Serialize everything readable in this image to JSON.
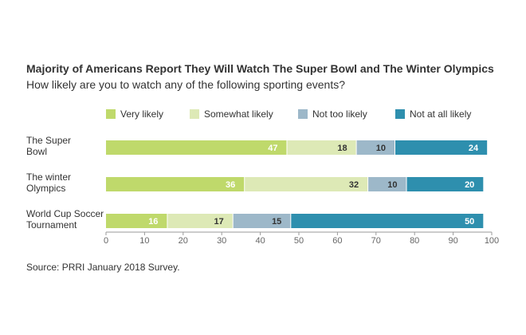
{
  "chart_data": {
    "type": "bar",
    "orientation": "horizontal",
    "stacked": true,
    "title": "Majority of Americans Report They Will Watch The Super Bowl and The Winter Olympics",
    "subtitle": "How likely are you to watch any of the following sporting events?",
    "categories": [
      [
        "The Super",
        "Bowl"
      ],
      [
        "The winter",
        "Olympics"
      ],
      [
        "World Cup Soccer",
        "Tournament"
      ]
    ],
    "series": [
      {
        "name": "Very likely",
        "color": "#bfd96b",
        "label_color": "#ffffff",
        "values": [
          47,
          36,
          16
        ]
      },
      {
        "name": "Somewhat likely",
        "color": "#dde9b6",
        "label_color": "#333333",
        "values": [
          18,
          32,
          17
        ]
      },
      {
        "name": "Not too likely",
        "color": "#9db8c9",
        "label_color": "#333333",
        "values": [
          10,
          10,
          15
        ]
      },
      {
        "name": "Not at all likely",
        "color": "#2e8fae",
        "label_color": "#ffffff",
        "values": [
          24,
          20,
          50
        ]
      }
    ],
    "xlim": [
      0,
      100
    ],
    "xticks": [
      0,
      10,
      20,
      30,
      40,
      50,
      60,
      70,
      80,
      90,
      100
    ],
    "grid": false,
    "legend": "top"
  },
  "source": "Source: PRRI January 2018 Survey."
}
